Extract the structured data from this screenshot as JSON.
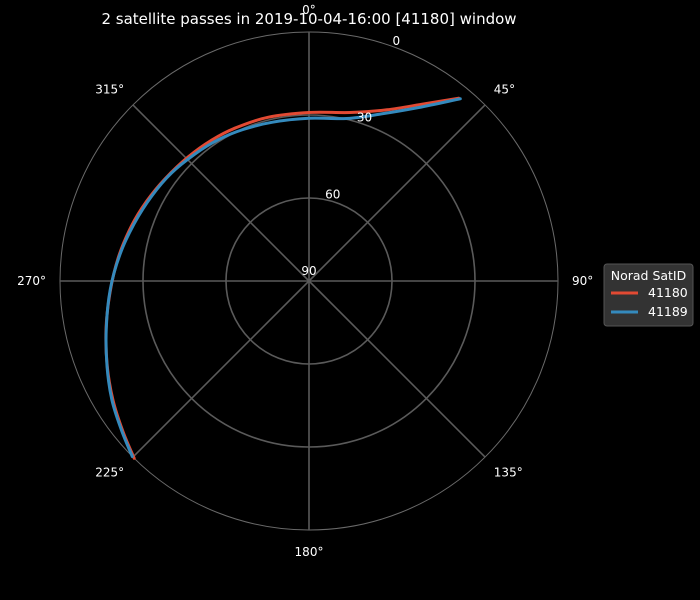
{
  "chart_data": {
    "type": "line",
    "projection": "polar",
    "title": "2 satellite passes in 2019-10-04-16:00 [41180] window",
    "theta_direction": "clockwise",
    "theta_zero": "north",
    "theta_ticks": [
      {
        "angle": 0,
        "label": "0°"
      },
      {
        "angle": 45,
        "label": "45°"
      },
      {
        "angle": 90,
        "label": "90°"
      },
      {
        "angle": 135,
        "label": "135°"
      },
      {
        "angle": 180,
        "label": "180°"
      },
      {
        "angle": 225,
        "label": "225°"
      },
      {
        "angle": 270,
        "label": "270°"
      },
      {
        "angle": 315,
        "label": "315°"
      }
    ],
    "r_axis": "elevation",
    "r_range": [
      90,
      0
    ],
    "r_ticks": [
      {
        "value": 90,
        "label": "90"
      },
      {
        "value": 60,
        "label": "60"
      },
      {
        "value": 30,
        "label": "30"
      },
      {
        "value": 0,
        "label": "0"
      }
    ],
    "grid": true,
    "legend": {
      "title": "Norad SatID",
      "position": "right"
    },
    "series": [
      {
        "name": "41180",
        "color": "#e24a33",
        "azimuth": [
          224.6,
          231.0,
          238.5,
          246.5,
          256.4,
          266.5,
          276.8,
          287.1,
          296.1,
          305.5,
          315.8,
          325.4,
          334.1,
          345.9,
          0.0,
          13.7,
          24.5,
          33.2,
          39.3
        ],
        "elevation": [
          0.0,
          3.5,
          7.0,
          10.6,
          14.5,
          17.9,
          20.5,
          22.8,
          24.6,
          26.2,
          27.4,
          28.1,
          28.6,
          29.0,
          29.1,
          27.3,
          22.0,
          13.4,
          4.6
        ]
      },
      {
        "name": "41189",
        "color": "#348abd",
        "azimuth": [
          225.2,
          231.5,
          238.9,
          247.2,
          257.0,
          267.6,
          278.0,
          288.1,
          298.4,
          308.2,
          318.0,
          327.3,
          336.5,
          347.1,
          0.0,
          13.1,
          23.4,
          32.3,
          39.7
        ],
        "elevation": [
          0.0,
          3.4,
          6.8,
          10.8,
          14.8,
          18.1,
          21.0,
          23.5,
          25.4,
          26.8,
          28.3,
          29.3,
          30.3,
          31.1,
          31.2,
          29.7,
          24.2,
          15.8,
          4.4
        ]
      }
    ]
  }
}
